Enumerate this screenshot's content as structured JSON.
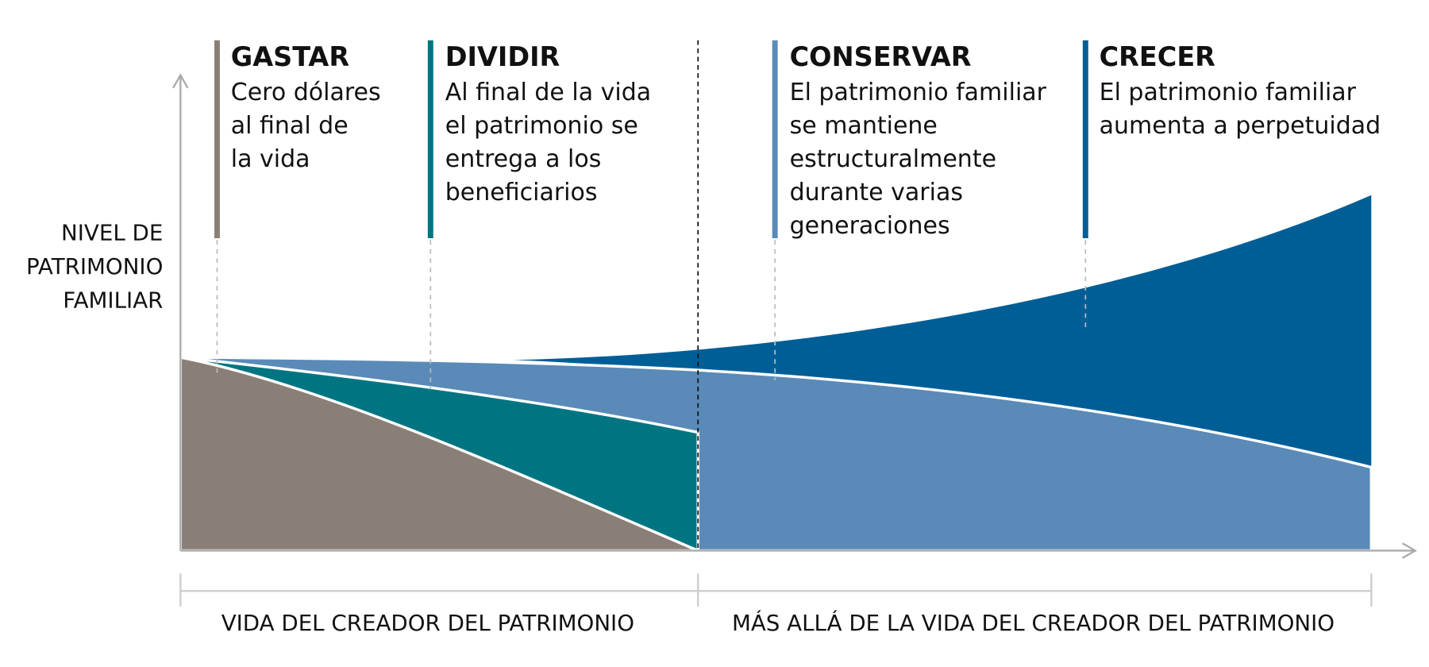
{
  "y_axis_label": [
    "NIVEL DE",
    "PATRIMONIO",
    "FAMILIAR"
  ],
  "strategies": [
    {
      "title": "GASTAR",
      "lines": [
        "Cero dólares",
        "al final de",
        "la vida"
      ]
    },
    {
      "title": "DIVIDIR",
      "lines": [
        "Al final de la vida",
        "el patrimonio se",
        "entrega a los",
        "beneficiarios"
      ]
    },
    {
      "title": "CONSERVAR",
      "lines": [
        "El patrimonio familiar",
        "se mantiene",
        "estructuralmente",
        "durante varias",
        "generaciones"
      ]
    },
    {
      "title": "CRECER",
      "lines": [
        "El patrimonio familiar",
        "aumenta a perpetuidad"
      ]
    }
  ],
  "periods": [
    "VIDA DEL CREADOR DEL PATRIMONIO",
    "MÁS ALLÁ DE LA VIDA DEL CREADOR DEL PATRIMONIO"
  ]
}
